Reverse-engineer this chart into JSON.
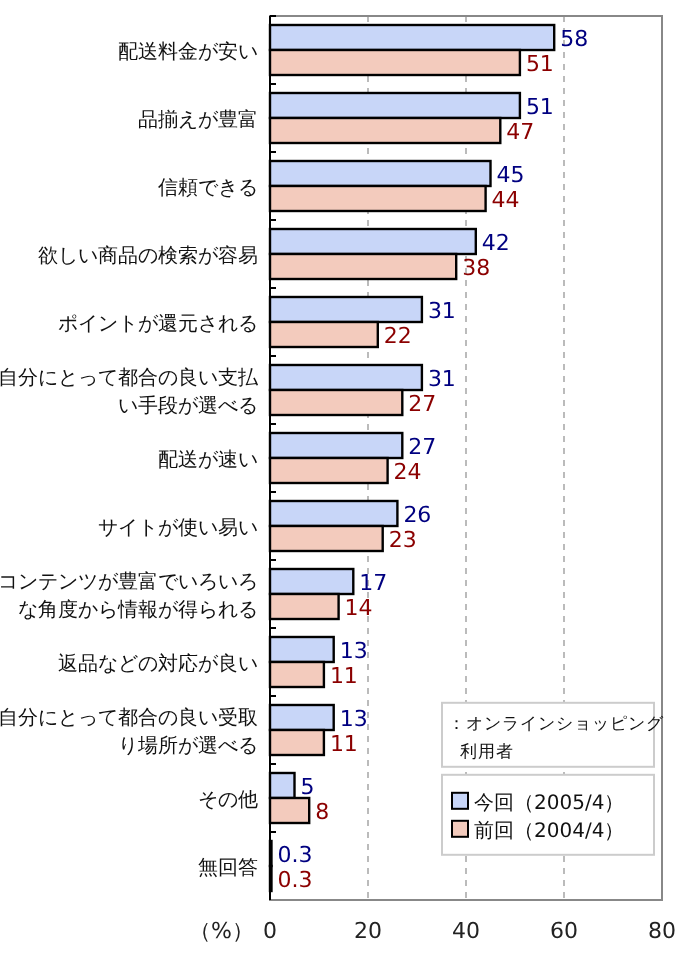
{
  "chart_data": {
    "type": "bar",
    "orientation": "horizontal",
    "xlabel": "（%）",
    "legend_title": "：オンラインショッピング利用者",
    "legend": "bottom right",
    "grid": "x",
    "data_labels": true,
    "categories": [
      "配送料金が安い",
      "品揃えが豊富",
      "信頼できる",
      "欲しい商品の検索が容易",
      "ポイントが還元される",
      "自分にとって都合の良い支払い手段が選べる",
      "配送が速い",
      "サイトが使い易い",
      "コンテンツが豊富でいろいろな角度から情報が得られる",
      "返品などの対応が良い",
      "自分にとって都合の良い受取り場所が選べる",
      "その他",
      "無回答"
    ],
    "xlim": [
      0,
      80
    ],
    "xticks": [
      0,
      20,
      40,
      60,
      80
    ],
    "series": [
      {
        "name": "今回（2005/4）",
        "color": "#c8d6f8",
        "values": [
          58,
          51,
          45,
          42,
          31,
          31,
          27,
          26,
          17,
          13,
          13,
          5,
          0.3
        ]
      },
      {
        "name": "前回（2004/4）",
        "color": "#f3cbbd",
        "values": [
          51,
          47,
          44,
          38,
          22,
          27,
          24,
          23,
          14,
          11,
          11,
          8,
          0.3
        ]
      }
    ]
  }
}
